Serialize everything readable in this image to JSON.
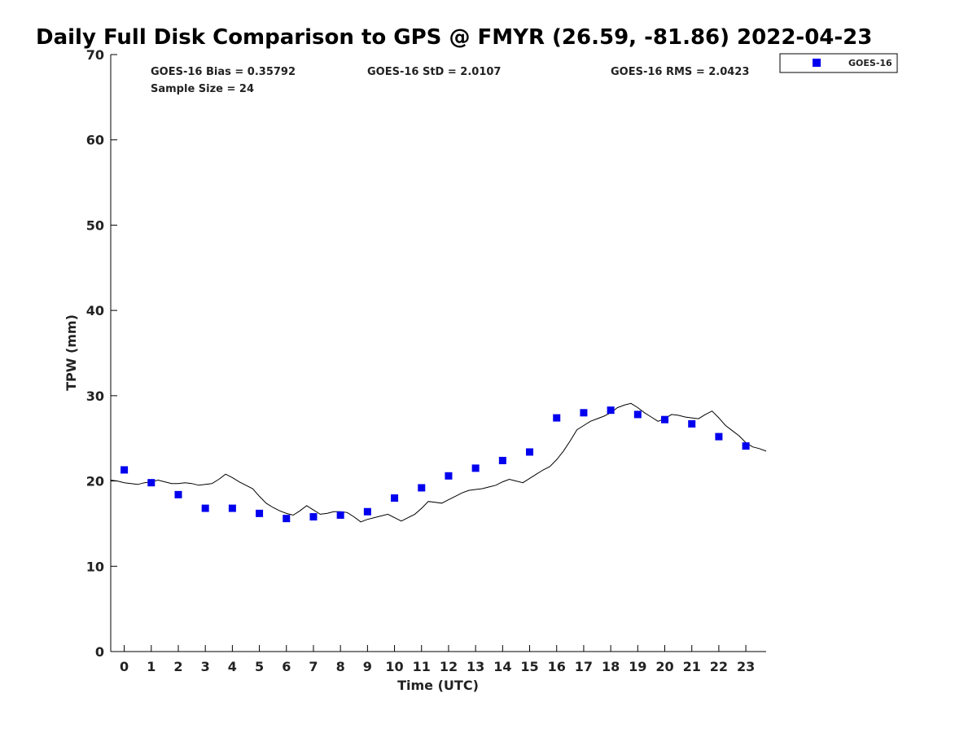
{
  "chart_data": {
    "type": "scatter",
    "title": "Daily Full Disk Comparison to GPS @ FMYR (26.59, -81.86) 2022-04-23",
    "xlabel": "Time (UTC)",
    "ylabel": "TPW (mm)",
    "xlim": [
      -0.5,
      23.75
    ],
    "ylim": [
      0,
      70
    ],
    "xticks": [
      "0",
      "1",
      "2",
      "3",
      "4",
      "5",
      "6",
      "7",
      "8",
      "9",
      "10",
      "11",
      "12",
      "13",
      "14",
      "15",
      "16",
      "17",
      "18",
      "19",
      "20",
      "21",
      "22",
      "23"
    ],
    "yticks": [
      "0",
      "10",
      "20",
      "30",
      "40",
      "50",
      "60",
      "70"
    ],
    "grid": false,
    "legend_position": "top-right, outside plot",
    "stats": {
      "bias": "GOES-16 Bias = 0.35792",
      "std": "GOES-16 StD = 2.0107",
      "rms": "GOES-16 RMS = 2.0423",
      "sample": "Sample Size = 24"
    },
    "series": [
      {
        "name": "GOES-16",
        "kind": "scatter",
        "marker": "square",
        "color": "#0000ee",
        "x": [
          0,
          1,
          2,
          3,
          4,
          5,
          6,
          7,
          8,
          9,
          10,
          11,
          12,
          13,
          14,
          15,
          16,
          17,
          18,
          19,
          20,
          21,
          22,
          23
        ],
        "y": [
          21.3,
          19.8,
          18.4,
          16.8,
          16.8,
          16.2,
          15.6,
          15.8,
          16.0,
          16.4,
          18.0,
          19.2,
          20.6,
          21.5,
          22.4,
          23.4,
          27.4,
          28.0,
          28.3,
          27.8,
          27.2,
          26.7,
          25.2,
          24.1
        ]
      },
      {
        "kind": "line",
        "color": "#000000",
        "x": [
          -0.5,
          -0.25,
          0,
          0.25,
          0.5,
          0.75,
          1,
          1.25,
          1.5,
          1.75,
          2,
          2.25,
          2.5,
          2.75,
          3,
          3.25,
          3.5,
          3.75,
          4,
          4.25,
          4.5,
          4.75,
          5,
          5.25,
          5.5,
          5.75,
          6,
          6.25,
          6.5,
          6.75,
          7,
          7.25,
          7.5,
          7.75,
          8,
          8.25,
          8.5,
          8.75,
          9,
          9.25,
          9.5,
          9.75,
          10,
          10.25,
          10.5,
          10.75,
          11,
          11.25,
          11.5,
          11.75,
          12,
          12.25,
          12.5,
          12.75,
          13,
          13.25,
          13.5,
          13.75,
          14,
          14.25,
          14.5,
          14.75,
          15,
          15.25,
          15.5,
          15.75,
          16,
          16.25,
          16.5,
          16.75,
          17,
          17.25,
          17.5,
          17.75,
          18,
          18.25,
          18.5,
          18.75,
          19,
          19.25,
          19.5,
          19.75,
          20,
          20.25,
          20.5,
          20.75,
          21,
          21.25,
          21.5,
          21.75,
          22,
          22.25,
          22.5,
          22.75,
          23,
          23.25,
          23.5,
          23.75
        ],
        "y": [
          20.1,
          20.0,
          19.8,
          19.7,
          19.6,
          19.8,
          19.9,
          20.1,
          19.9,
          19.7,
          19.7,
          19.8,
          19.7,
          19.5,
          19.6,
          19.7,
          20.2,
          20.8,
          20.4,
          19.9,
          19.5,
          19.1,
          18.2,
          17.4,
          16.9,
          16.5,
          16.2,
          16.0,
          16.5,
          17.1,
          16.6,
          16.1,
          16.2,
          16.4,
          16.4,
          16.3,
          15.8,
          15.2,
          15.5,
          15.7,
          15.9,
          16.1,
          15.7,
          15.3,
          15.7,
          16.1,
          16.8,
          17.6,
          17.5,
          17.4,
          17.8,
          18.2,
          18.6,
          18.9,
          19.0,
          19.1,
          19.3,
          19.5,
          19.9,
          20.2,
          20.0,
          19.8,
          20.3,
          20.8,
          21.3,
          21.7,
          22.5,
          23.5,
          24.7,
          26.0,
          26.5,
          27.0,
          27.3,
          27.6,
          28.0,
          28.6,
          28.9,
          29.1,
          28.6,
          28.0,
          27.5,
          27.0,
          27.3,
          27.8,
          27.7,
          27.5,
          27.4,
          27.3,
          27.8,
          28.2,
          27.4,
          26.5,
          25.9,
          25.3,
          24.5,
          24.0,
          23.8,
          23.5
        ]
      }
    ]
  }
}
